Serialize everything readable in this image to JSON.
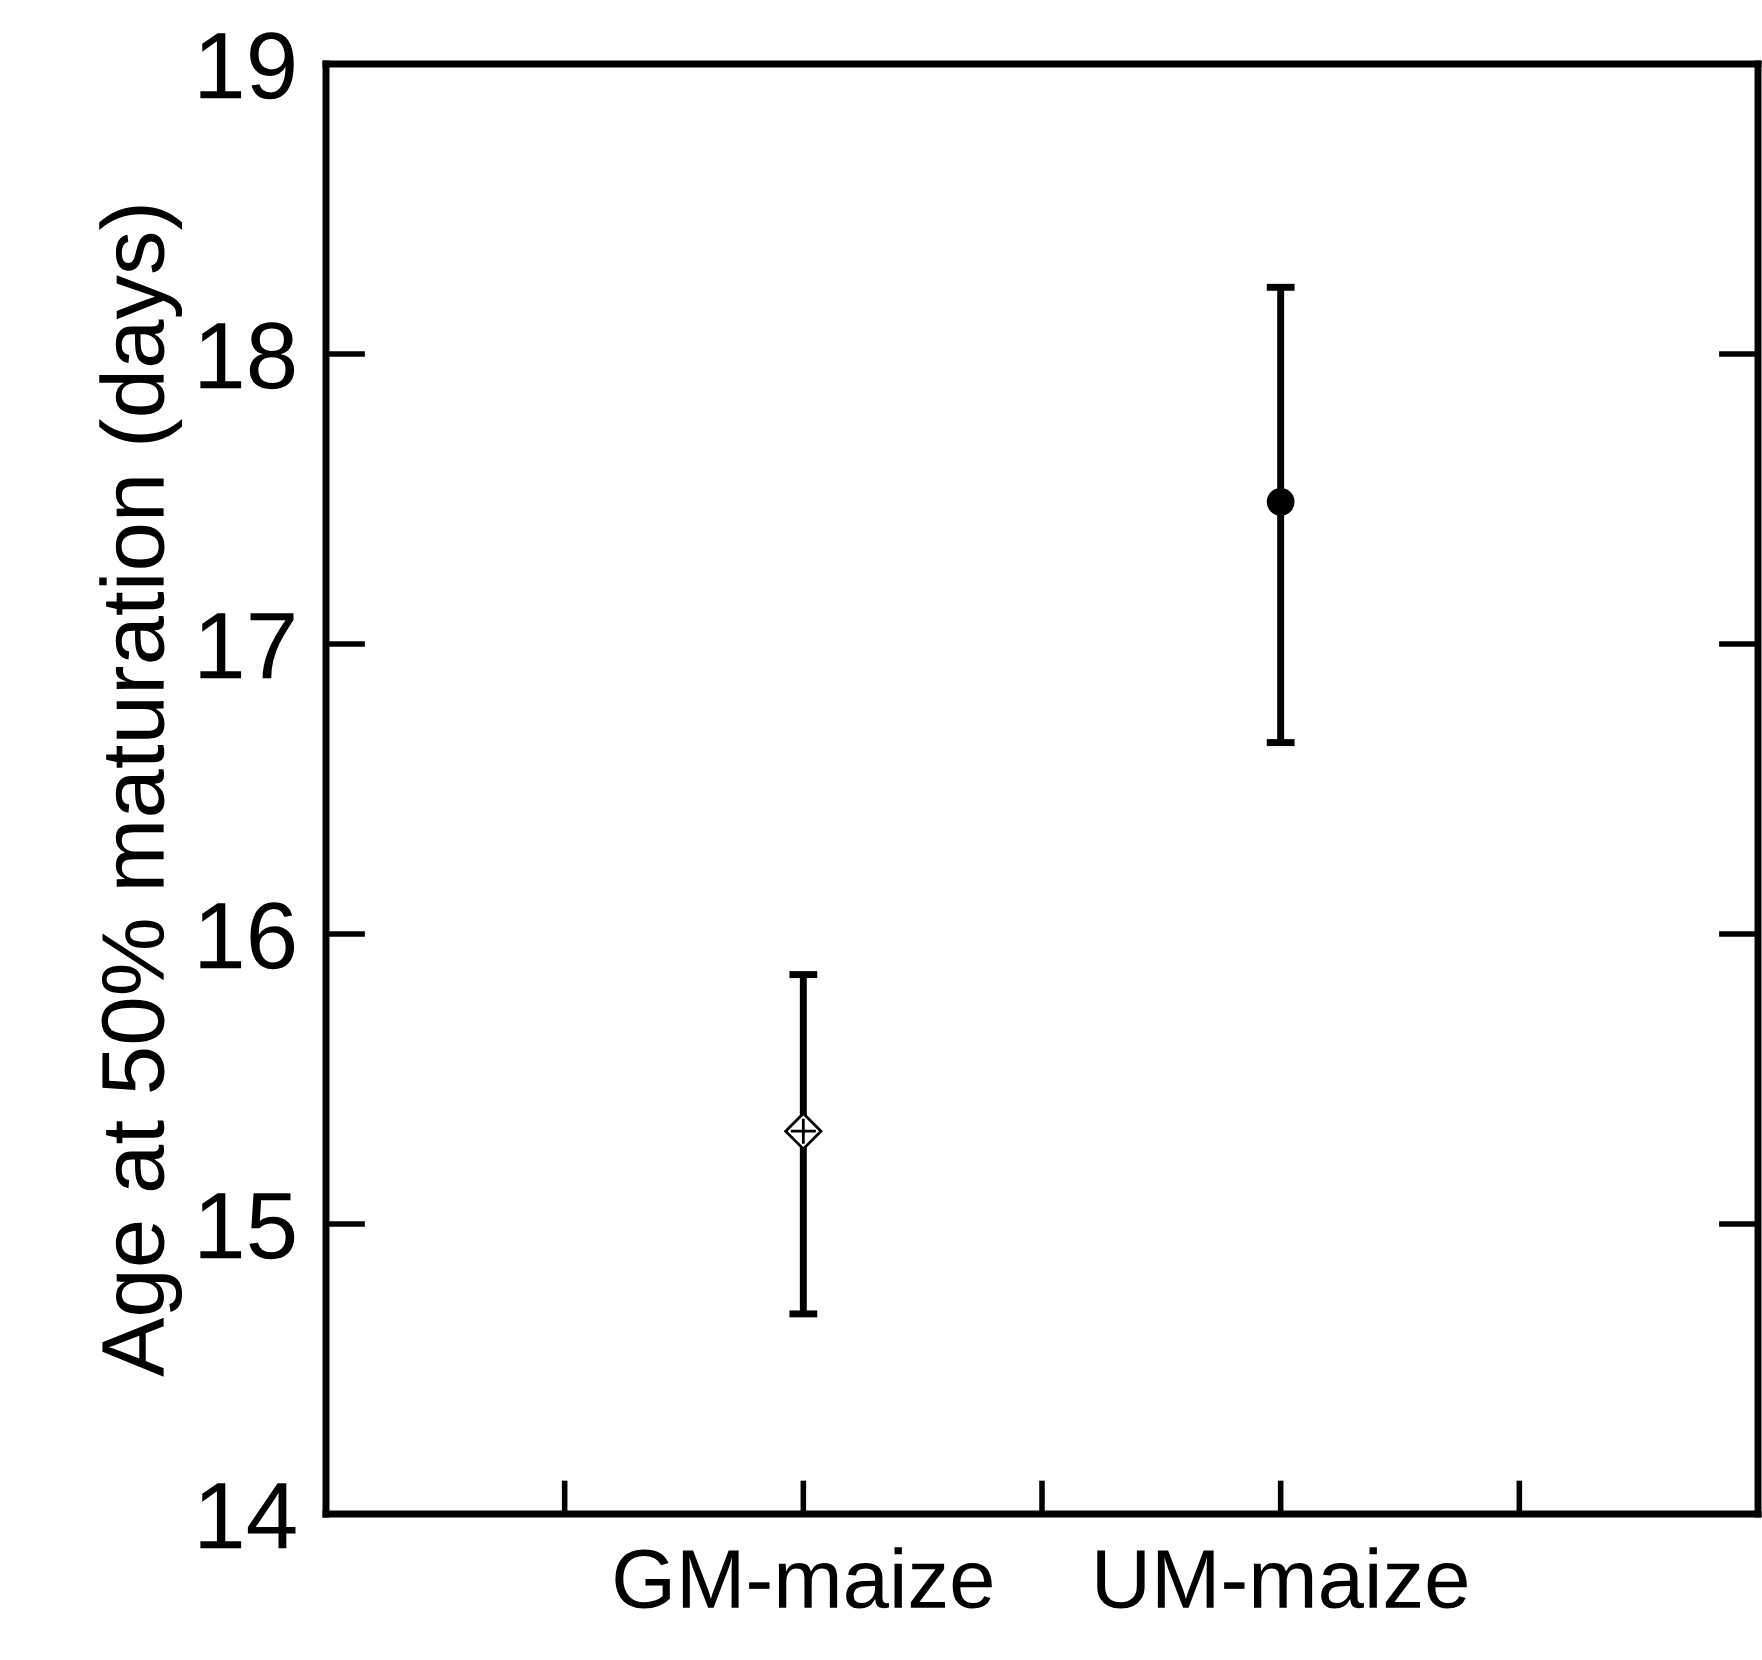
{
  "chart_data": {
    "type": "scatter",
    "ylabel": "Age at 50% maturation (days)",
    "categories": [
      "GM-maize",
      "UM-maize"
    ],
    "series": [
      {
        "x": [
          "GM-maize"
        ],
        "values": [
          15.32
        ],
        "errors": [
          [
            14.69,
            15.86
          ]
        ],
        "color": "#000000",
        "marker": "diamond"
      },
      {
        "x": [
          "UM-maize"
        ],
        "values": [
          17.49
        ],
        "errors": [
          [
            16.66,
            18.23
          ]
        ],
        "color": "#000000",
        "marker": "circle"
      }
    ],
    "ylim": [
      14,
      19
    ],
    "yticks": [
      14,
      15,
      16,
      17,
      18,
      19
    ],
    "grid": false,
    "legend": false
  }
}
